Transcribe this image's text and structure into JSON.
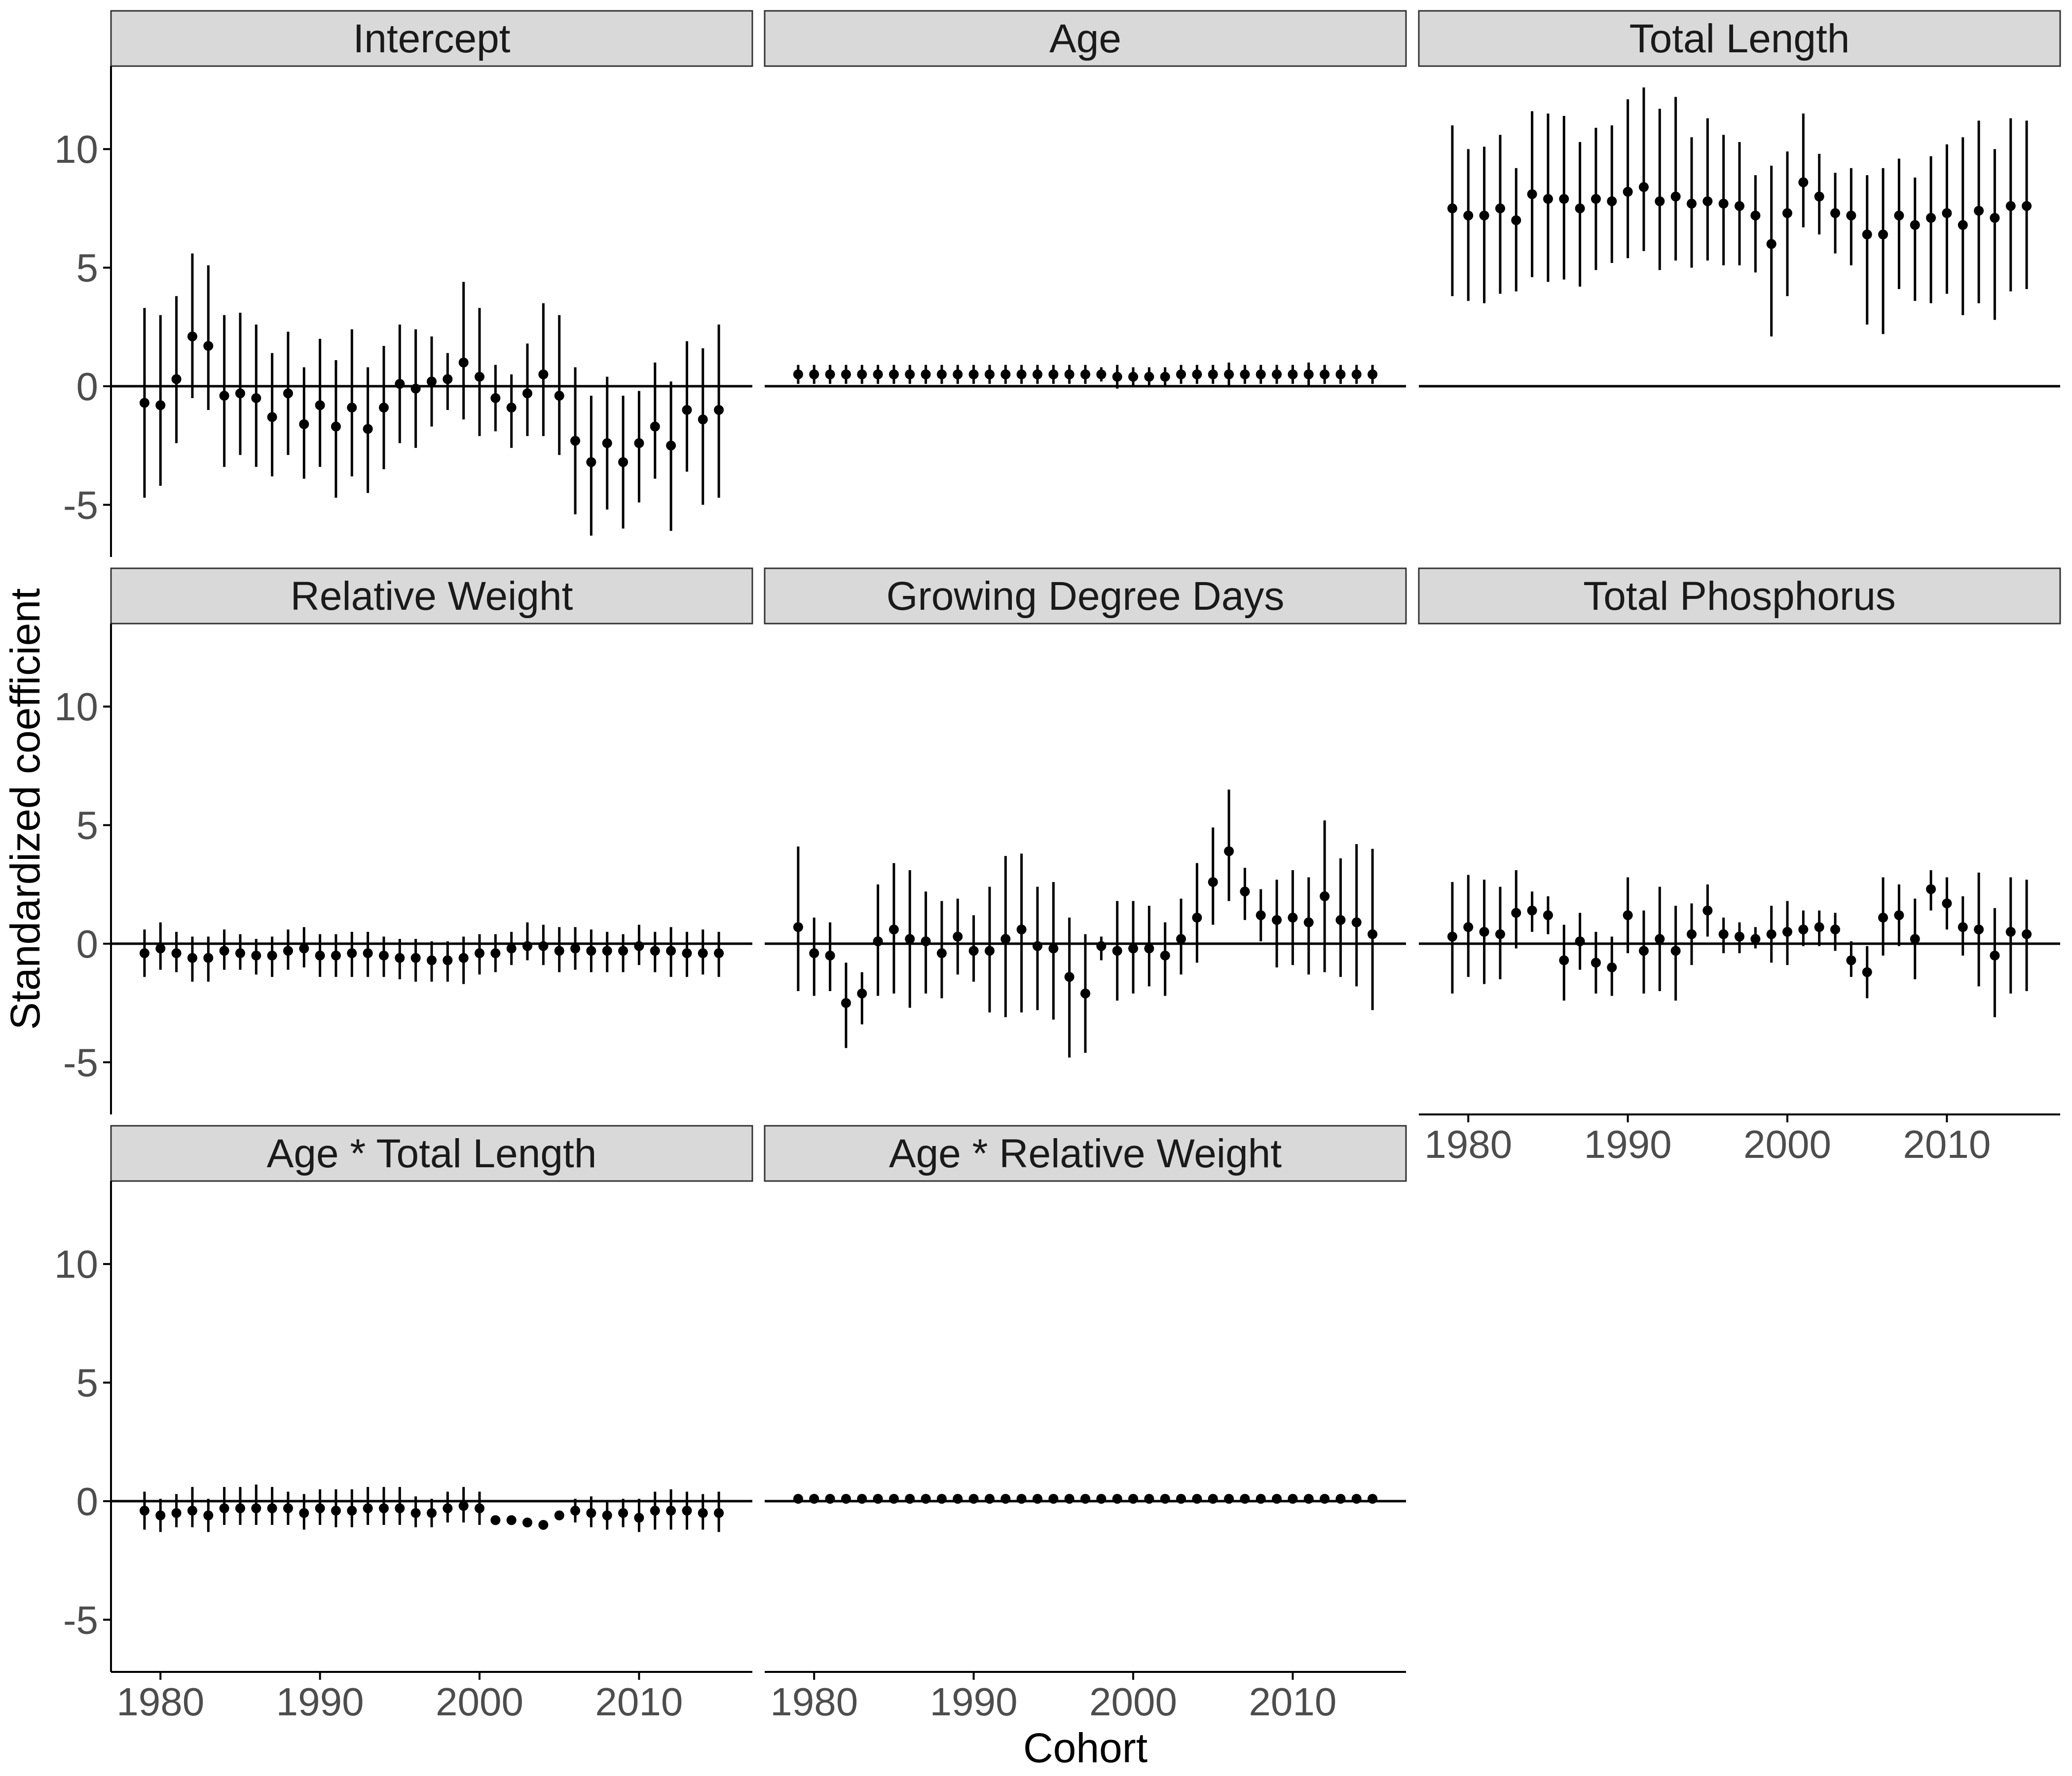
{
  "chart_data": {
    "type": "scatter",
    "subtype": "point-range facet grid",
    "xlabel": "Cohort",
    "ylabel": "Standardized coefficient",
    "x": [
      1979,
      1980,
      1981,
      1982,
      1983,
      1984,
      1985,
      1986,
      1987,
      1988,
      1989,
      1990,
      1991,
      1992,
      1993,
      1994,
      1995,
      1996,
      1997,
      1998,
      1999,
      2000,
      2001,
      2002,
      2003,
      2004,
      2005,
      2006,
      2007,
      2008,
      2009,
      2010,
      2011,
      2012,
      2013,
      2014,
      2015
    ],
    "xlim": [
      1976.9,
      2017.1
    ],
    "ylim": [
      -7.2,
      13.5
    ],
    "xticks": [
      1980,
      1990,
      2000,
      2010
    ],
    "xtick_labels": [
      "1980",
      "1990",
      "2000",
      "2010"
    ],
    "yticks": [
      -5,
      0,
      5,
      10
    ],
    "ytick_labels": [
      "-5",
      "0",
      "5",
      "10"
    ],
    "reference_line": 0,
    "grid": false,
    "legend": "none",
    "colors": {
      "points": "#000000",
      "strip_fill": "#d9d9d9",
      "strip_border": "#333333",
      "tick_text": "#4d4d4d"
    },
    "panels": [
      {
        "title": "Intercept",
        "est": [
          -0.7,
          -0.8,
          0.3,
          2.1,
          1.7,
          -0.4,
          -0.3,
          -0.5,
          -1.3,
          -0.3,
          -1.6,
          -0.8,
          -1.7,
          -0.9,
          -1.8,
          -0.9,
          0.1,
          -0.1,
          0.2,
          0.3,
          1.0,
          0.4,
          -0.5,
          -0.9,
          -0.3,
          0.5,
          -0.4,
          -2.3,
          -3.2,
          -2.4,
          -3.2,
          -2.4,
          -1.7,
          -2.5,
          -1.0,
          -1.4,
          -1.0
        ],
        "lower": [
          -4.7,
          -4.2,
          -2.4,
          -0.5,
          -1.0,
          -3.4,
          -2.9,
          -3.4,
          -3.8,
          -2.9,
          -3.9,
          -3.4,
          -4.7,
          -3.8,
          -4.5,
          -3.5,
          -2.4,
          -2.6,
          -1.7,
          -1.0,
          -1.4,
          -2.1,
          -1.9,
          -2.6,
          -2.1,
          -2.1,
          -2.9,
          -5.4,
          -6.3,
          -5.2,
          -6.0,
          -4.9,
          -3.9,
          -6.1,
          -3.6,
          -5.0,
          -4.7
        ],
        "upper": [
          3.3,
          3.0,
          3.8,
          5.6,
          5.1,
          3.0,
          3.1,
          2.6,
          1.4,
          2.3,
          0.8,
          2.0,
          1.1,
          2.4,
          0.8,
          1.7,
          2.6,
          2.4,
          2.1,
          1.4,
          4.4,
          3.3,
          0.9,
          0.5,
          1.8,
          3.5,
          3.0,
          0.8,
          -0.4,
          0.4,
          -0.4,
          -0.2,
          1.0,
          0.2,
          1.9,
          1.6,
          2.6
        ]
      },
      {
        "title": "Age",
        "est": [
          0.5,
          0.5,
          0.5,
          0.5,
          0.5,
          0.5,
          0.5,
          0.5,
          0.5,
          0.5,
          0.5,
          0.5,
          0.5,
          0.5,
          0.5,
          0.5,
          0.5,
          0.5,
          0.5,
          0.5,
          0.4,
          0.4,
          0.4,
          0.4,
          0.5,
          0.5,
          0.5,
          0.5,
          0.5,
          0.5,
          0.5,
          0.5,
          0.5,
          0.5,
          0.5,
          0.5,
          0.5
        ],
        "lower": [
          0.1,
          0.1,
          0.1,
          0.1,
          0.1,
          0.1,
          0.1,
          0.1,
          0.1,
          0.1,
          0.1,
          0.1,
          0.1,
          0.1,
          0.1,
          0.1,
          0.1,
          0.1,
          0.1,
          0.2,
          -0.1,
          0.0,
          0.0,
          0.0,
          0.1,
          0.1,
          0.1,
          0.0,
          0.1,
          0.1,
          0.1,
          0.1,
          0.0,
          0.1,
          0.1,
          0.1,
          0.1
        ],
        "upper": [
          0.9,
          0.9,
          0.9,
          0.9,
          0.9,
          0.9,
          0.9,
          0.9,
          0.9,
          0.9,
          0.9,
          0.9,
          0.9,
          0.9,
          0.9,
          0.9,
          0.9,
          0.9,
          0.9,
          0.8,
          0.9,
          0.8,
          0.8,
          0.8,
          0.9,
          0.9,
          0.9,
          1.0,
          0.9,
          0.9,
          0.9,
          0.9,
          1.0,
          0.9,
          0.9,
          0.9,
          0.9
        ]
      },
      {
        "title": "Total Length",
        "est": [
          7.5,
          7.2,
          7.2,
          7.5,
          7.0,
          8.1,
          7.9,
          7.9,
          7.5,
          7.9,
          7.8,
          8.2,
          8.4,
          7.8,
          8.0,
          7.7,
          7.8,
          7.7,
          7.6,
          7.2,
          6.0,
          7.3,
          8.6,
          8.0,
          7.3,
          7.2,
          6.4,
          6.4,
          7.2,
          6.8,
          7.1,
          7.3,
          6.8,
          7.4,
          7.1,
          7.6,
          7.6
        ],
        "lower": [
          3.8,
          3.6,
          3.5,
          3.9,
          4.0,
          4.6,
          4.4,
          4.5,
          4.2,
          4.9,
          5.2,
          5.4,
          5.7,
          4.9,
          5.3,
          5.0,
          5.3,
          5.1,
          5.1,
          4.8,
          2.1,
          3.8,
          6.7,
          6.4,
          5.6,
          5.1,
          2.6,
          2.2,
          4.1,
          3.6,
          3.5,
          3.9,
          3.0,
          3.5,
          2.8,
          4.0,
          4.1
        ],
        "upper": [
          11.0,
          10.0,
          10.1,
          10.6,
          9.2,
          11.6,
          11.5,
          11.4,
          10.3,
          10.9,
          11.0,
          12.1,
          12.6,
          11.7,
          12.2,
          10.5,
          11.3,
          10.6,
          10.3,
          8.9,
          9.3,
          9.9,
          11.5,
          9.8,
          9.0,
          9.2,
          8.9,
          9.2,
          9.6,
          8.8,
          9.7,
          10.2,
          10.5,
          11.2,
          10.0,
          11.3,
          11.2
        ]
      },
      {
        "title": "Relative Weight",
        "est": [
          -0.4,
          -0.2,
          -0.4,
          -0.6,
          -0.6,
          -0.3,
          -0.4,
          -0.5,
          -0.5,
          -0.3,
          -0.2,
          -0.5,
          -0.5,
          -0.4,
          -0.4,
          -0.5,
          -0.6,
          -0.6,
          -0.7,
          -0.7,
          -0.6,
          -0.4,
          -0.4,
          -0.2,
          -0.1,
          -0.1,
          -0.3,
          -0.2,
          -0.3,
          -0.3,
          -0.3,
          -0.1,
          -0.3,
          -0.3,
          -0.4,
          -0.4,
          -0.4
        ],
        "lower": [
          -1.4,
          -1.1,
          -1.2,
          -1.6,
          -1.6,
          -1.1,
          -1.1,
          -1.3,
          -1.4,
          -1.1,
          -1.0,
          -1.4,
          -1.4,
          -1.4,
          -1.4,
          -1.4,
          -1.5,
          -1.6,
          -1.6,
          -1.6,
          -1.7,
          -1.3,
          -1.2,
          -0.9,
          -0.7,
          -0.9,
          -1.2,
          -1.1,
          -1.2,
          -1.2,
          -1.2,
          -0.9,
          -1.2,
          -1.4,
          -1.4,
          -1.3,
          -1.4
        ],
        "upper": [
          0.6,
          0.9,
          0.5,
          0.3,
          0.3,
          0.6,
          0.4,
          0.2,
          0.3,
          0.6,
          0.7,
          0.4,
          0.4,
          0.5,
          0.5,
          0.3,
          0.2,
          0.2,
          0.1,
          0.1,
          0.3,
          0.4,
          0.4,
          0.5,
          0.9,
          0.8,
          0.7,
          0.7,
          0.6,
          0.5,
          0.4,
          0.8,
          0.5,
          0.7,
          0.5,
          0.6,
          0.5
        ]
      },
      {
        "title": "Growing Degree Days",
        "est": [
          0.7,
          -0.4,
          -0.5,
          -2.5,
          -2.1,
          0.1,
          0.6,
          0.2,
          0.1,
          -0.4,
          0.3,
          -0.3,
          -0.3,
          0.2,
          0.6,
          -0.1,
          -0.2,
          -1.4,
          -2.1,
          -0.1,
          -0.3,
          -0.2,
          -0.2,
          -0.5,
          0.2,
          1.1,
          2.6,
          3.9,
          2.2,
          1.2,
          1.0,
          1.1,
          0.9,
          2.0,
          1.0,
          0.9,
          0.4
        ],
        "lower": [
          -2.0,
          -2.2,
          -2.0,
          -4.4,
          -3.4,
          -2.2,
          -2.1,
          -2.7,
          -2.1,
          -2.3,
          -1.3,
          -1.6,
          -2.9,
          -3.1,
          -2.9,
          -2.8,
          -3.2,
          -4.8,
          -4.6,
          -0.7,
          -2.4,
          -2.1,
          -1.8,
          -2.2,
          -1.3,
          -0.8,
          0.8,
          1.8,
          1.0,
          0.1,
          -1.0,
          -0.9,
          -1.3,
          -1.2,
          -1.4,
          -1.8,
          -2.8
        ],
        "upper": [
          4.1,
          1.1,
          0.9,
          -0.8,
          -1.2,
          2.5,
          3.4,
          3.1,
          2.2,
          1.8,
          1.9,
          1.2,
          2.4,
          3.7,
          3.8,
          2.4,
          2.6,
          1.1,
          0.4,
          0.3,
          1.8,
          1.8,
          1.6,
          0.9,
          1.9,
          3.4,
          4.9,
          6.5,
          3.2,
          2.3,
          2.7,
          3.1,
          2.8,
          5.2,
          3.6,
          4.2,
          4.0
        ]
      },
      {
        "title": "Total Phosphorus",
        "est": [
          0.3,
          0.7,
          0.5,
          0.4,
          1.3,
          1.4,
          1.2,
          -0.7,
          0.1,
          -0.8,
          -1.0,
          1.2,
          -0.3,
          0.2,
          -0.3,
          0.4,
          1.4,
          0.4,
          0.3,
          0.2,
          0.4,
          0.5,
          0.6,
          0.7,
          0.6,
          -0.7,
          -1.2,
          1.1,
          1.2,
          0.2,
          2.3,
          1.7,
          0.7,
          0.6,
          -0.5,
          0.5,
          0.4
        ],
        "lower": [
          -2.1,
          -1.4,
          -1.7,
          -1.5,
          -0.2,
          0.5,
          0.4,
          -2.4,
          -1.1,
          -2.1,
          -2.2,
          -0.4,
          -2.1,
          -2.0,
          -2.4,
          -0.9,
          0.3,
          -0.4,
          -0.4,
          -0.2,
          -0.8,
          -0.9,
          -0.1,
          -0.1,
          -0.3,
          -1.4,
          -2.3,
          -0.5,
          -0.1,
          -1.5,
          1.4,
          0.6,
          -0.5,
          -1.8,
          -3.1,
          -2.1,
          -2.0
        ],
        "upper": [
          2.6,
          2.9,
          2.7,
          2.4,
          3.1,
          2.2,
          2.0,
          0.8,
          1.3,
          0.5,
          0.3,
          2.8,
          1.4,
          2.4,
          1.6,
          1.7,
          2.5,
          1.1,
          0.9,
          0.7,
          1.6,
          1.8,
          1.4,
          1.4,
          1.3,
          0.1,
          -0.1,
          2.8,
          2.5,
          1.9,
          3.1,
          2.8,
          2.0,
          3.0,
          1.5,
          2.8,
          2.7
        ]
      },
      {
        "title": "Age * Total Length",
        "est": [
          -0.4,
          -0.6,
          -0.5,
          -0.4,
          -0.6,
          -0.3,
          -0.3,
          -0.3,
          -0.3,
          -0.3,
          -0.5,
          -0.3,
          -0.4,
          -0.4,
          -0.3,
          -0.3,
          -0.3,
          -0.5,
          -0.5,
          -0.3,
          -0.2,
          -0.3,
          -0.8,
          -0.8,
          -0.9,
          -1.0,
          -0.6,
          -0.4,
          -0.5,
          -0.6,
          -0.5,
          -0.7,
          -0.4,
          -0.4,
          -0.4,
          -0.5,
          -0.5
        ],
        "lower": [
          -1.2,
          -1.3,
          -1.1,
          -1.1,
          -1.3,
          -1.0,
          -1.0,
          -1.0,
          -1.0,
          -1.0,
          -1.2,
          -1.0,
          -1.1,
          -1.1,
          -1.0,
          -1.0,
          -1.0,
          -1.1,
          -1.1,
          -0.9,
          -0.9,
          -1.0,
          -1.0,
          -1.0,
          -1.0,
          -1.2,
          -0.8,
          -0.9,
          -1.1,
          -1.2,
          -1.1,
          -1.3,
          -1.2,
          -1.2,
          -1.2,
          -1.2,
          -1.3
        ],
        "upper": [
          0.4,
          0.1,
          0.3,
          0.6,
          0.1,
          0.6,
          0.6,
          0.7,
          0.6,
          0.4,
          0.3,
          0.5,
          0.5,
          0.5,
          0.6,
          0.6,
          0.6,
          0.2,
          0.1,
          0.4,
          0.6,
          0.4,
          -0.6,
          -0.6,
          -0.7,
          -0.8,
          -0.4,
          0.1,
          0.2,
          0.0,
          0.1,
          0.1,
          0.4,
          0.5,
          0.4,
          0.3,
          0.4
        ]
      },
      {
        "title": "Age * Relative Weight",
        "est": [
          0.1,
          0.1,
          0.1,
          0.1,
          0.1,
          0.1,
          0.1,
          0.1,
          0.1,
          0.1,
          0.1,
          0.1,
          0.1,
          0.1,
          0.1,
          0.1,
          0.1,
          0.1,
          0.1,
          0.1,
          0.1,
          0.1,
          0.1,
          0.1,
          0.1,
          0.1,
          0.1,
          0.1,
          0.1,
          0.1,
          0.1,
          0.1,
          0.1,
          0.1,
          0.1,
          0.1,
          0.1
        ],
        "lower": [
          0.0,
          0.0,
          0.0,
          0.0,
          0.0,
          0.0,
          0.0,
          0.0,
          0.0,
          0.0,
          0.0,
          0.0,
          0.0,
          0.0,
          0.0,
          0.0,
          0.0,
          0.0,
          0.0,
          0.0,
          0.0,
          0.0,
          0.0,
          0.0,
          0.0,
          0.0,
          0.0,
          0.0,
          0.0,
          0.0,
          0.0,
          0.0,
          0.0,
          0.0,
          0.0,
          0.0,
          0.0
        ],
        "upper": [
          0.2,
          0.2,
          0.2,
          0.2,
          0.2,
          0.2,
          0.2,
          0.2,
          0.2,
          0.2,
          0.2,
          0.2,
          0.2,
          0.2,
          0.2,
          0.2,
          0.2,
          0.2,
          0.2,
          0.2,
          0.2,
          0.2,
          0.2,
          0.2,
          0.2,
          0.2,
          0.2,
          0.2,
          0.2,
          0.2,
          0.2,
          0.2,
          0.2,
          0.2,
          0.2,
          0.2,
          0.2
        ]
      }
    ]
  }
}
